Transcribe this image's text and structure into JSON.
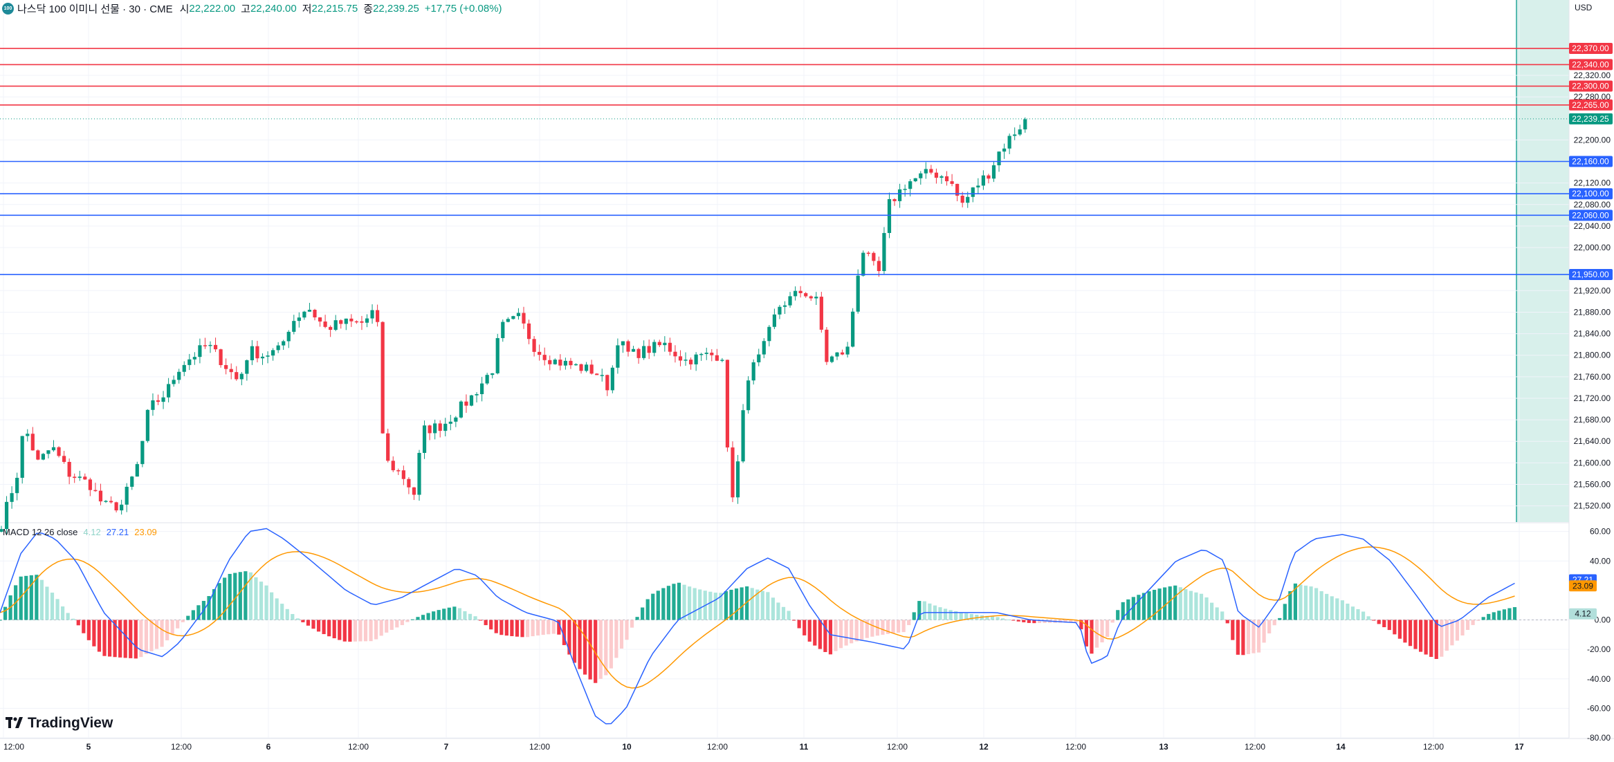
{
  "header": {
    "badge": "100",
    "title": "나스닥 100 이미니 선물 · 30 · CME",
    "open_label": "시",
    "open": "22,222.00",
    "high_label": "고",
    "high": "22,240.00",
    "low_label": "저",
    "low": "22,215.75",
    "close_label": "종",
    "close": "22,239.25",
    "change": "+17,75 (+0.08%)"
  },
  "currency": "USD",
  "price_axis": {
    "min": 21490,
    "max": 22460,
    "ticks": [
      "22,320.00",
      "22,280.00",
      "22,200.00",
      "22,120.00",
      "22,080.00",
      "22,040.00",
      "22,000.00",
      "21,920.00",
      "21,880.00",
      "21,840.00",
      "21,800.00",
      "21,760.00",
      "21,720.00",
      "21,680.00",
      "21,640.00",
      "21,600.00",
      "21,560.00",
      "21,520.00"
    ],
    "current_price": 22239.25,
    "current_label": "22,239.25"
  },
  "resistance_lines": [
    {
      "value": 22370,
      "label": "22,370.00"
    },
    {
      "value": 22340,
      "label": "22,340.00"
    },
    {
      "value": 22300,
      "label": "22,300.00"
    },
    {
      "value": 22265,
      "label": "22,265.00"
    }
  ],
  "support_lines": [
    {
      "value": 22160,
      "label": "22,160.00"
    },
    {
      "value": 22100,
      "label": "22,100.00"
    },
    {
      "value": 22060,
      "label": "22,060.00"
    },
    {
      "value": 21950,
      "label": "21,950.00"
    }
  ],
  "time_axis": [
    "12:00",
    "5",
    "12:00",
    "6",
    "12:00",
    "7",
    "12:00",
    "10",
    "12:00",
    "11",
    "12:00",
    "12",
    "12:00",
    "13",
    "12:00",
    "14",
    "12:00",
    "17"
  ],
  "macd": {
    "label": "MACD 12 26 close",
    "hist": "4.12",
    "macd": "27.21",
    "signal": "23.09",
    "ticks": [
      "60.00",
      "40.00",
      "0.00",
      "-20.00",
      "-40.00",
      "-60.00",
      "-80.00"
    ],
    "min": -80,
    "max": 65
  },
  "brand": "TradingView",
  "colors": {
    "up": "#089981",
    "down": "#f23645",
    "resistance": "#f23645",
    "support": "#2962ff",
    "macd_line": "#2962ff",
    "signal_line": "#ff9800",
    "future_zone": "#d1ede7"
  },
  "chart_data": {
    "type": "candlestick",
    "anchors": [
      [
        0,
        21480
      ],
      [
        25,
        21580
      ],
      [
        35,
        21670
      ],
      [
        55,
        21600
      ],
      [
        75,
        21630
      ],
      [
        100,
        21580
      ],
      [
        130,
        21560
      ],
      [
        150,
        21520
      ],
      [
        175,
        21520
      ],
      [
        200,
        21600
      ],
      [
        215,
        21700
      ],
      [
        240,
        21730
      ],
      [
        260,
        21780
      ],
      [
        300,
        21820
      ],
      [
        320,
        21790
      ],
      [
        345,
        21750
      ],
      [
        360,
        21810
      ],
      [
        380,
        21800
      ],
      [
        405,
        21810
      ],
      [
        420,
        21860
      ],
      [
        445,
        21890
      ],
      [
        470,
        21850
      ],
      [
        495,
        21860
      ],
      [
        525,
        21860
      ],
      [
        545,
        21890
      ],
      [
        548,
        21700
      ],
      [
        560,
        21600
      ],
      [
        580,
        21580
      ],
      [
        600,
        21540
      ],
      [
        610,
        21660
      ],
      [
        640,
        21670
      ],
      [
        680,
        21720
      ],
      [
        715,
        21780
      ],
      [
        722,
        21850
      ],
      [
        750,
        21870
      ],
      [
        775,
        21810
      ],
      [
        800,
        21790
      ],
      [
        830,
        21780
      ],
      [
        860,
        21770
      ],
      [
        880,
        21740
      ],
      [
        893,
        21830
      ],
      [
        910,
        21800
      ],
      [
        935,
        21810
      ],
      [
        960,
        21820
      ],
      [
        990,
        21790
      ],
      [
        1020,
        21800
      ],
      [
        1045,
        21800
      ],
      [
        1055,
        21520
      ],
      [
        1065,
        21580
      ],
      [
        1080,
        21760
      ],
      [
        1100,
        21800
      ],
      [
        1125,
        21890
      ],
      [
        1160,
        21920
      ],
      [
        1180,
        21900
      ],
      [
        1195,
        21790
      ],
      [
        1225,
        21810
      ],
      [
        1245,
        22000
      ],
      [
        1260,
        21970
      ],
      [
        1270,
        21950
      ],
      [
        1285,
        22080
      ],
      [
        1310,
        22120
      ],
      [
        1345,
        22140
      ],
      [
        1370,
        22130
      ],
      [
        1390,
        22080
      ],
      [
        1415,
        22120
      ],
      [
        1430,
        22140
      ],
      [
        1445,
        22180
      ],
      [
        1470,
        22220
      ],
      [
        1485,
        22239
      ]
    ]
  }
}
